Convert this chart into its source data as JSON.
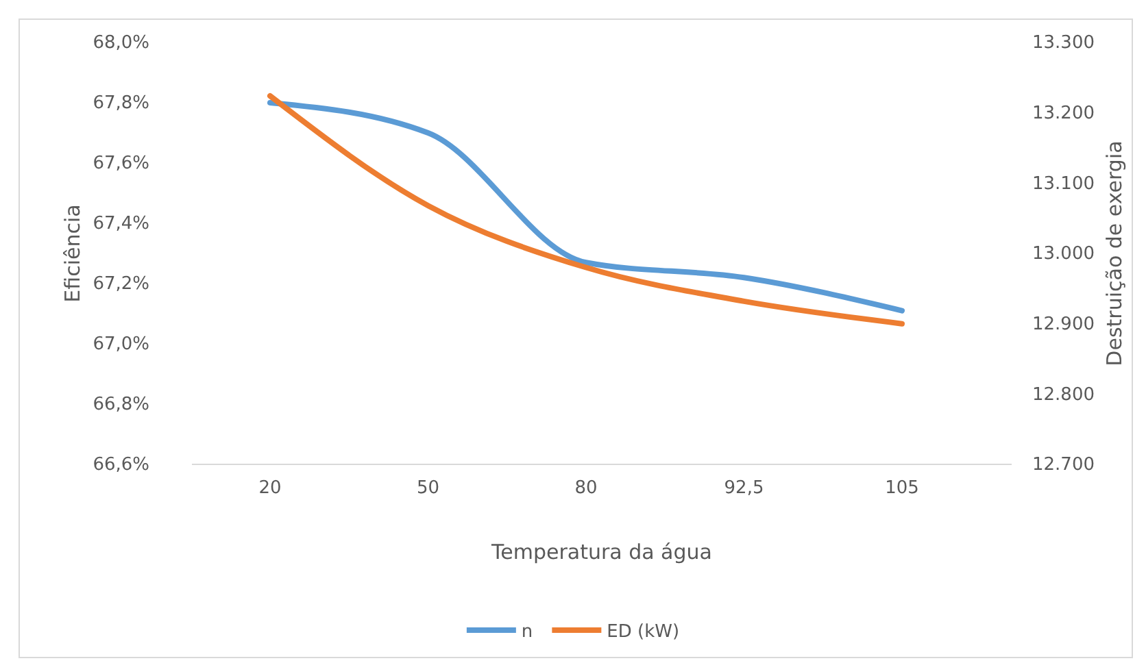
{
  "chart_data": {
    "type": "line",
    "xlabel": "Temperatura da água",
    "ylabel": "Eficiência",
    "y2label": "Destruição de exergia",
    "categories": [
      "20",
      "50",
      "80",
      "92,5",
      "105"
    ],
    "series": [
      {
        "name": "n",
        "color": "#5b9bd5",
        "values": [
          67.8,
          67.7,
          67.27,
          67.22,
          67.11
        ]
      },
      {
        "name": "ED (kW)",
        "color": "#ed7d31",
        "axis": "y2",
        "values": [
          13224,
          13068,
          12980,
          12932,
          12900
        ]
      }
    ],
    "ylim": [
      66.6,
      68.0
    ],
    "yticks": [
      {
        "value": 66.6,
        "label": "66,6%"
      },
      {
        "value": 66.8,
        "label": "66,8%"
      },
      {
        "value": 67.0,
        "label": "67,0%"
      },
      {
        "value": 67.2,
        "label": "67,2%"
      },
      {
        "value": 67.4,
        "label": "67,4%"
      },
      {
        "value": 67.6,
        "label": "67,6%"
      },
      {
        "value": 67.8,
        "label": "67,8%"
      },
      {
        "value": 68.0,
        "label": "68,0%"
      }
    ],
    "y2lim": [
      12700,
      13300
    ],
    "y2ticks": [
      {
        "value": 12700,
        "label": "12.700"
      },
      {
        "value": 12800,
        "label": "12.800"
      },
      {
        "value": 12900,
        "label": "12.900"
      },
      {
        "value": 13000,
        "label": "13.000"
      },
      {
        "value": 13100,
        "label": "13.100"
      },
      {
        "value": 13200,
        "label": "13.200"
      },
      {
        "value": 13300,
        "label": "13.300"
      }
    ],
    "legend": "bottom",
    "marker": "none",
    "line_style": "solid",
    "grid": false
  }
}
